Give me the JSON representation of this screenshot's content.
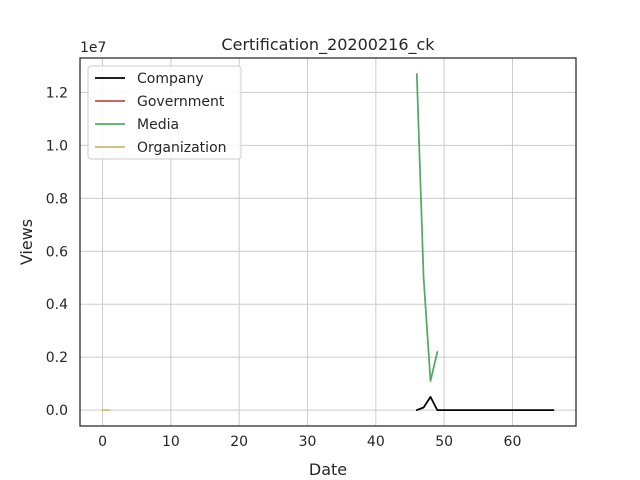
{
  "chart_data": {
    "type": "line",
    "title": "Certification_20200216_ck",
    "xlabel": "Date",
    "ylabel": "Views",
    "y_multiplier_label": "1e7",
    "xlim": [
      -3.3,
      69.3
    ],
    "ylim": [
      -0.6,
      13.3
    ],
    "x_ticks": [
      0,
      10,
      20,
      30,
      40,
      50,
      60
    ],
    "y_ticks": [
      0.0,
      2.0,
      4.0,
      6.0,
      8.0,
      10.0,
      12.0
    ],
    "y_tick_labels": [
      "0.0",
      "0.2",
      "0.4",
      "0.6",
      "0.8",
      "1.0",
      "1.2"
    ],
    "grid": true,
    "legend_position": "top-left",
    "series": [
      {
        "name": "Company",
        "color": "#000000",
        "x": [
          46,
          47,
          48,
          49,
          50,
          52,
          54,
          56,
          58,
          60,
          62,
          64,
          66
        ],
        "y": [
          0.0,
          0.1,
          0.5,
          0.0,
          0.0,
          0.0,
          0.0,
          0.0,
          0.0,
          0.0,
          0.0,
          0.0,
          0.0
        ]
      },
      {
        "name": "Government",
        "color": "#c44e52",
        "x": [],
        "y": []
      },
      {
        "name": "Media",
        "color": "#55a868",
        "x": [
          46,
          47,
          48,
          49
        ],
        "y": [
          12.7,
          5.0,
          1.1,
          2.2
        ]
      },
      {
        "name": "Organization",
        "color": "#ccb974",
        "x": [
          0,
          1
        ],
        "y": [
          0.0,
          0.0
        ]
      }
    ]
  }
}
